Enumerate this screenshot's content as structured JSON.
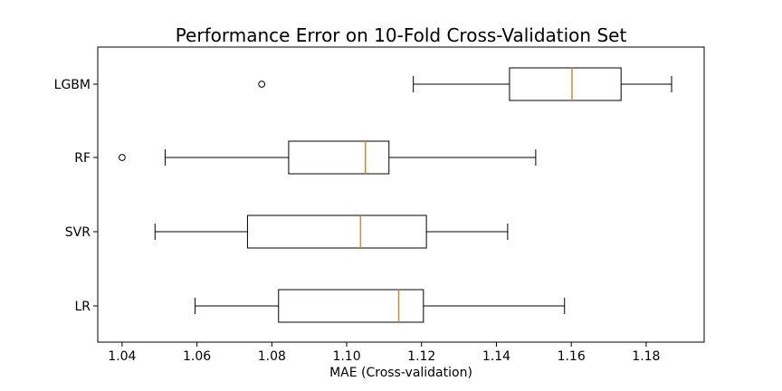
{
  "chart_data": {
    "type": "boxplot",
    "orientation": "horizontal",
    "title": "Performance Error on 10-Fold Cross-Validation Set",
    "xlabel": "MAE (Cross-validation)",
    "ylabel": "",
    "xlim": [
      1.0335,
      1.1955
    ],
    "xticks": [
      1.04,
      1.06,
      1.08,
      1.1,
      1.12,
      1.14,
      1.16,
      1.18
    ],
    "xtick_labels": [
      "1.04",
      "1.06",
      "1.08",
      "1.10",
      "1.12",
      "1.14",
      "1.16",
      "1.18"
    ],
    "categories": [
      "LR",
      "SVR",
      "RF",
      "LGBM"
    ],
    "series": [
      {
        "category": "LR",
        "whisker_low": 1.0595,
        "q1": 1.0818,
        "median": 1.1139,
        "q3": 1.1205,
        "whisker_high": 1.1582,
        "outliers": []
      },
      {
        "category": "SVR",
        "whisker_low": 1.0488,
        "q1": 1.0735,
        "median": 1.1037,
        "q3": 1.1213,
        "whisker_high": 1.143,
        "outliers": []
      },
      {
        "category": "RF",
        "whisker_low": 1.0515,
        "q1": 1.0845,
        "median": 1.105,
        "q3": 1.1113,
        "whisker_high": 1.1505,
        "outliers": [
          1.04
        ]
      },
      {
        "category": "LGBM",
        "whisker_low": 1.1178,
        "q1": 1.1435,
        "median": 1.1602,
        "q3": 1.1733,
        "whisker_high": 1.1868,
        "outliers": [
          1.0773
        ]
      }
    ],
    "colors": {
      "box": "#000000",
      "median": "#cc8a33",
      "outlier": "#000000",
      "axis": "#000000"
    },
    "grid": false,
    "legend": "none"
  }
}
